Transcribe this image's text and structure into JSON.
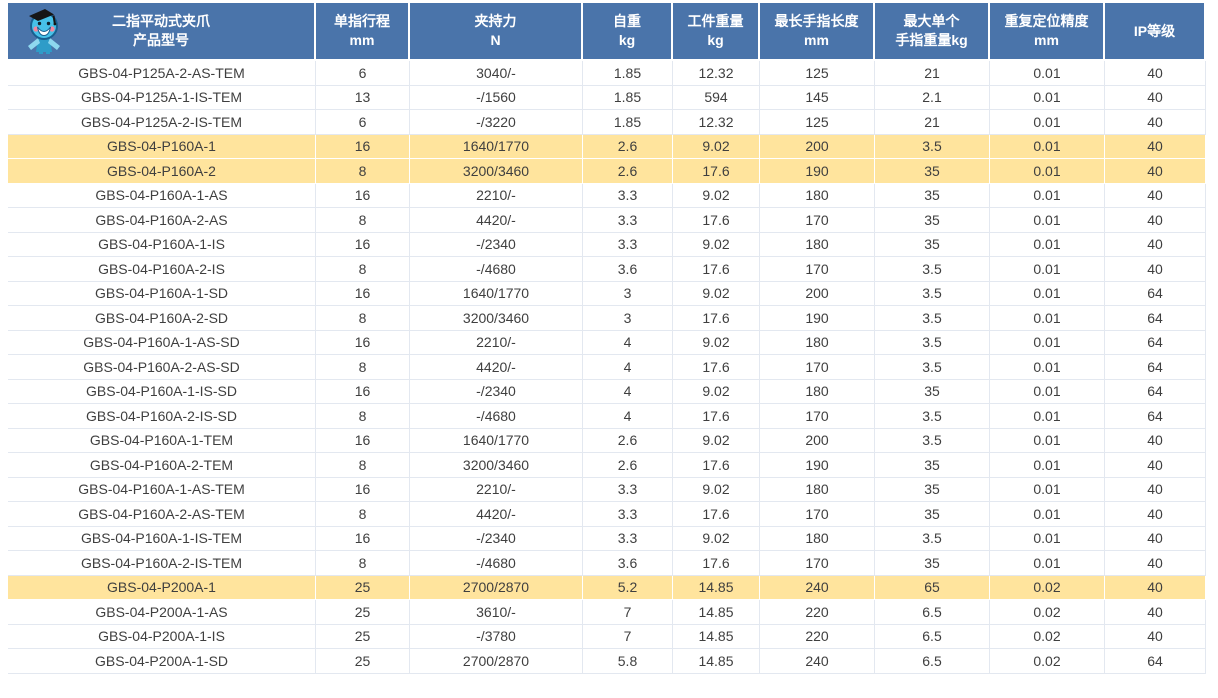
{
  "colors": {
    "header_bg": "#4a74aa",
    "header_text": "#ffffff",
    "highlight_bg": "#ffe49d",
    "body_text": "#3f3f3f",
    "grid_line": "#e3e8f0"
  },
  "icons": {
    "mascot": "graduate-mascot-icon"
  },
  "table": {
    "headers": [
      {
        "line1": "二指平动式夹爪",
        "line2": "产品型号"
      },
      {
        "line1": "单指行程",
        "line2": "mm"
      },
      {
        "line1": "夹持力",
        "line2": "N"
      },
      {
        "line1": "自重",
        "line2": "kg"
      },
      {
        "line1": "工件重量",
        "line2": "kg"
      },
      {
        "line1": "最长手指长度",
        "line2": "mm"
      },
      {
        "line1": "最大单个",
        "line2": "手指重量kg"
      },
      {
        "line1": "重复定位精度",
        "line2": "mm"
      },
      {
        "line1": "IP等级",
        "line2": ""
      }
    ],
    "columns": [
      "model",
      "stroke_mm",
      "force_n",
      "self_weight_kg",
      "workpiece_kg",
      "finger_length_mm",
      "finger_weight_kg",
      "precision_mm",
      "ip"
    ],
    "rows": [
      {
        "model": "GBS-04-P125A-2-AS-TEM",
        "stroke_mm": "6",
        "force_n": "3040/-",
        "self_weight_kg": "1.85",
        "workpiece_kg": "12.32",
        "finger_length_mm": "125",
        "finger_weight_kg": "21",
        "precision_mm": "0.01",
        "ip": "40",
        "highlighted": false
      },
      {
        "model": "GBS-04-P125A-1-IS-TEM",
        "stroke_mm": "13",
        "force_n": "-/1560",
        "self_weight_kg": "1.85",
        "workpiece_kg": "594",
        "finger_length_mm": "145",
        "finger_weight_kg": "2.1",
        "precision_mm": "0.01",
        "ip": "40",
        "highlighted": false
      },
      {
        "model": "GBS-04-P125A-2-IS-TEM",
        "stroke_mm": "6",
        "force_n": "-/3220",
        "self_weight_kg": "1.85",
        "workpiece_kg": "12.32",
        "finger_length_mm": "125",
        "finger_weight_kg": "21",
        "precision_mm": "0.01",
        "ip": "40",
        "highlighted": false
      },
      {
        "model": "GBS-04-P160A-1",
        "stroke_mm": "16",
        "force_n": "1640/1770",
        "self_weight_kg": "2.6",
        "workpiece_kg": "9.02",
        "finger_length_mm": "200",
        "finger_weight_kg": "3.5",
        "precision_mm": "0.01",
        "ip": "40",
        "highlighted": true
      },
      {
        "model": "GBS-04-P160A-2",
        "stroke_mm": "8",
        "force_n": "3200/3460",
        "self_weight_kg": "2.6",
        "workpiece_kg": "17.6",
        "finger_length_mm": "190",
        "finger_weight_kg": "35",
        "precision_mm": "0.01",
        "ip": "40",
        "highlighted": true
      },
      {
        "model": "GBS-04-P160A-1-AS",
        "stroke_mm": "16",
        "force_n": "2210/-",
        "self_weight_kg": "3.3",
        "workpiece_kg": "9.02",
        "finger_length_mm": "180",
        "finger_weight_kg": "35",
        "precision_mm": "0.01",
        "ip": "40",
        "highlighted": false
      },
      {
        "model": "GBS-04-P160A-2-AS",
        "stroke_mm": "8",
        "force_n": "4420/-",
        "self_weight_kg": "3.3",
        "workpiece_kg": "17.6",
        "finger_length_mm": "170",
        "finger_weight_kg": "35",
        "precision_mm": "0.01",
        "ip": "40",
        "highlighted": false
      },
      {
        "model": "GBS-04-P160A-1-IS",
        "stroke_mm": "16",
        "force_n": "-/2340",
        "self_weight_kg": "3.3",
        "workpiece_kg": "9.02",
        "finger_length_mm": "180",
        "finger_weight_kg": "35",
        "precision_mm": "0.01",
        "ip": "40",
        "highlighted": false
      },
      {
        "model": "GBS-04-P160A-2-IS",
        "stroke_mm": "8",
        "force_n": "-/4680",
        "self_weight_kg": "3.6",
        "workpiece_kg": "17.6",
        "finger_length_mm": "170",
        "finger_weight_kg": "3.5",
        "precision_mm": "0.01",
        "ip": "40",
        "highlighted": false
      },
      {
        "model": "GBS-04-P160A-1-SD",
        "stroke_mm": "16",
        "force_n": "1640/1770",
        "self_weight_kg": "3",
        "workpiece_kg": "9.02",
        "finger_length_mm": "200",
        "finger_weight_kg": "3.5",
        "precision_mm": "0.01",
        "ip": "64",
        "highlighted": false
      },
      {
        "model": "GBS-04-P160A-2-SD",
        "stroke_mm": "8",
        "force_n": "3200/3460",
        "self_weight_kg": "3",
        "workpiece_kg": "17.6",
        "finger_length_mm": "190",
        "finger_weight_kg": "3.5",
        "precision_mm": "0.01",
        "ip": "64",
        "highlighted": false
      },
      {
        "model": "GBS-04-P160A-1-AS-SD",
        "stroke_mm": "16",
        "force_n": "2210/-",
        "self_weight_kg": "4",
        "workpiece_kg": "9.02",
        "finger_length_mm": "180",
        "finger_weight_kg": "3.5",
        "precision_mm": "0.01",
        "ip": "64",
        "highlighted": false
      },
      {
        "model": "GBS-04-P160A-2-AS-SD",
        "stroke_mm": "8",
        "force_n": "4420/-",
        "self_weight_kg": "4",
        "workpiece_kg": "17.6",
        "finger_length_mm": "170",
        "finger_weight_kg": "3.5",
        "precision_mm": "0.01",
        "ip": "64",
        "highlighted": false
      },
      {
        "model": "GBS-04-P160A-1-IS-SD",
        "stroke_mm": "16",
        "force_n": "-/2340",
        "self_weight_kg": "4",
        "workpiece_kg": "9.02",
        "finger_length_mm": "180",
        "finger_weight_kg": "35",
        "precision_mm": "0.01",
        "ip": "64",
        "highlighted": false
      },
      {
        "model": "GBS-04-P160A-2-IS-SD",
        "stroke_mm": "8",
        "force_n": "-/4680",
        "self_weight_kg": "4",
        "workpiece_kg": "17.6",
        "finger_length_mm": "170",
        "finger_weight_kg": "3.5",
        "precision_mm": "0.01",
        "ip": "64",
        "highlighted": false
      },
      {
        "model": "GBS-04-P160A-1-TEM",
        "stroke_mm": "16",
        "force_n": "1640/1770",
        "self_weight_kg": "2.6",
        "workpiece_kg": "9.02",
        "finger_length_mm": "200",
        "finger_weight_kg": "3.5",
        "precision_mm": "0.01",
        "ip": "40",
        "highlighted": false
      },
      {
        "model": "GBS-04-P160A-2-TEM",
        "stroke_mm": "8",
        "force_n": "3200/3460",
        "self_weight_kg": "2.6",
        "workpiece_kg": "17.6",
        "finger_length_mm": "190",
        "finger_weight_kg": "35",
        "precision_mm": "0.01",
        "ip": "40",
        "highlighted": false
      },
      {
        "model": "GBS-04-P160A-1-AS-TEM",
        "stroke_mm": "16",
        "force_n": "2210/-",
        "self_weight_kg": "3.3",
        "workpiece_kg": "9.02",
        "finger_length_mm": "180",
        "finger_weight_kg": "35",
        "precision_mm": "0.01",
        "ip": "40",
        "highlighted": false
      },
      {
        "model": "GBS-04-P160A-2-AS-TEM",
        "stroke_mm": "8",
        "force_n": "4420/-",
        "self_weight_kg": "3.3",
        "workpiece_kg": "17.6",
        "finger_length_mm": "170",
        "finger_weight_kg": "35",
        "precision_mm": "0.01",
        "ip": "40",
        "highlighted": false
      },
      {
        "model": "GBS-04-P160A-1-IS-TEM",
        "stroke_mm": "16",
        "force_n": "-/2340",
        "self_weight_kg": "3.3",
        "workpiece_kg": "9.02",
        "finger_length_mm": "180",
        "finger_weight_kg": "3.5",
        "precision_mm": "0.01",
        "ip": "40",
        "highlighted": false
      },
      {
        "model": "GBS-04-P160A-2-IS-TEM",
        "stroke_mm": "8",
        "force_n": "-/4680",
        "self_weight_kg": "3.6",
        "workpiece_kg": "17.6",
        "finger_length_mm": "170",
        "finger_weight_kg": "35",
        "precision_mm": "0.01",
        "ip": "40",
        "highlighted": false
      },
      {
        "model": "GBS-04-P200A-1",
        "stroke_mm": "25",
        "force_n": "2700/2870",
        "self_weight_kg": "5.2",
        "workpiece_kg": "14.85",
        "finger_length_mm": "240",
        "finger_weight_kg": "65",
        "precision_mm": "0.02",
        "ip": "40",
        "highlighted": true
      },
      {
        "model": "GBS-04-P200A-1-AS",
        "stroke_mm": "25",
        "force_n": "3610/-",
        "self_weight_kg": "7",
        "workpiece_kg": "14.85",
        "finger_length_mm": "220",
        "finger_weight_kg": "6.5",
        "precision_mm": "0.02",
        "ip": "40",
        "highlighted": false
      },
      {
        "model": "GBS-04-P200A-1-IS",
        "stroke_mm": "25",
        "force_n": "-/3780",
        "self_weight_kg": "7",
        "workpiece_kg": "14.85",
        "finger_length_mm": "220",
        "finger_weight_kg": "6.5",
        "precision_mm": "0.02",
        "ip": "40",
        "highlighted": false
      },
      {
        "model": "GBS-04-P200A-1-SD",
        "stroke_mm": "25",
        "force_n": "2700/2870",
        "self_weight_kg": "5.8",
        "workpiece_kg": "14.85",
        "finger_length_mm": "240",
        "finger_weight_kg": "6.5",
        "precision_mm": "0.02",
        "ip": "64",
        "highlighted": false
      }
    ]
  }
}
